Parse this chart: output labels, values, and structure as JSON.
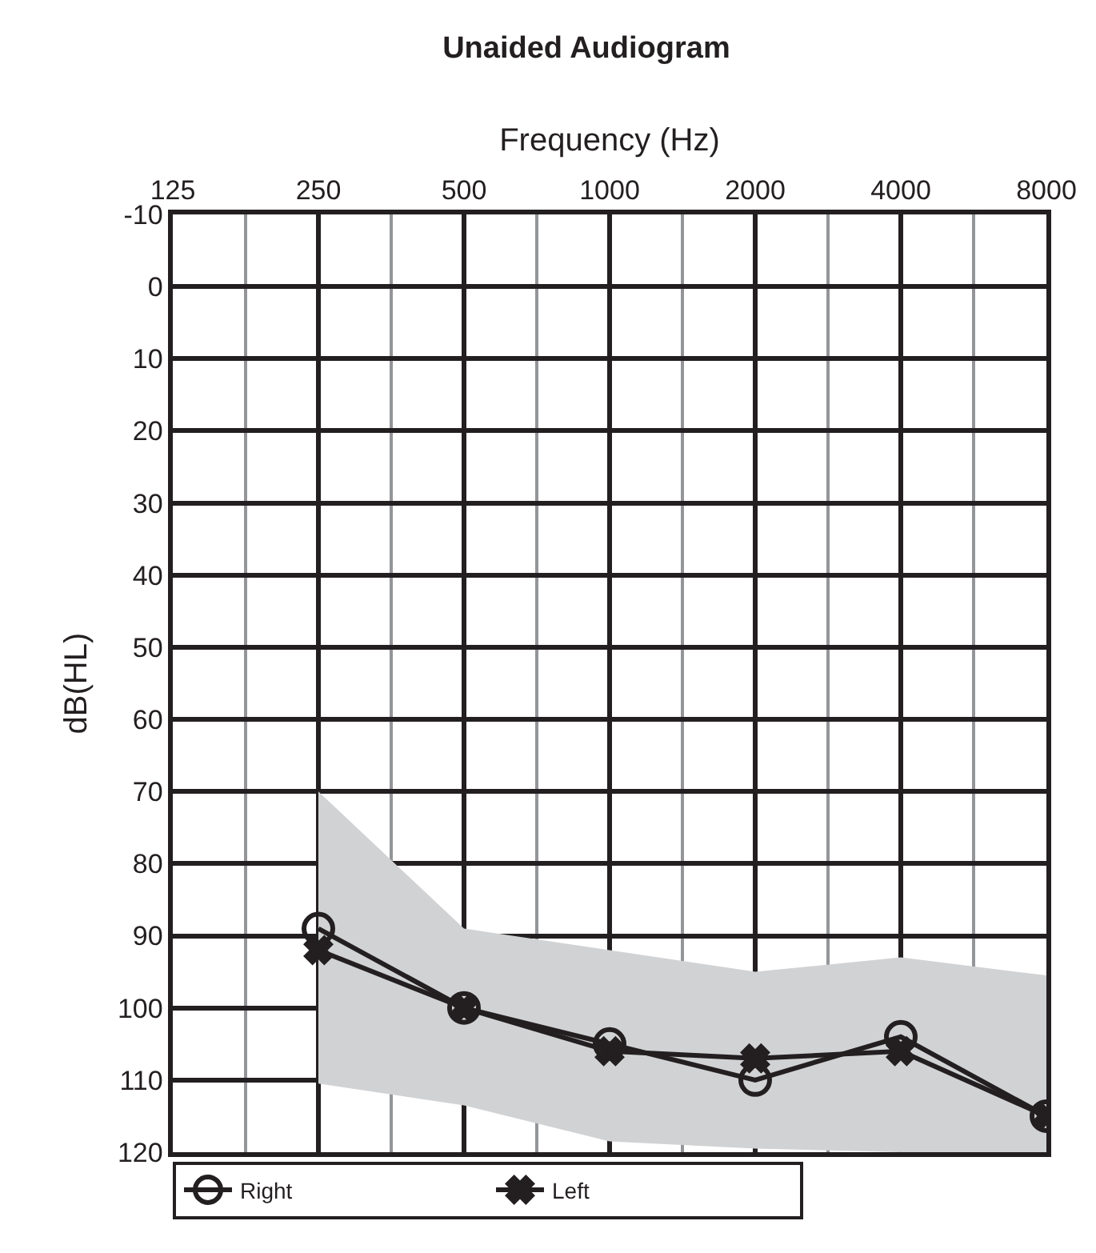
{
  "chart_data": {
    "type": "line",
    "title": "Unaided Audiogram",
    "xlabel": "Frequency (Hz)",
    "ylabel": "dB(HL)",
    "categories": [
      "125",
      "250",
      "500",
      "1000",
      "2000",
      "4000",
      "8000"
    ],
    "ylim": [
      120,
      -10
    ],
    "yticks": [
      -10,
      0,
      10,
      20,
      30,
      40,
      50,
      60,
      70,
      80,
      90,
      100,
      110,
      120
    ],
    "grid": true,
    "legend": "bottom left",
    "line_style": "solid",
    "series": [
      {
        "type": "line",
        "color": "#d1d2d4",
        "values": [
          null,
          null,
          null,
          null,
          null,
          null,
          null
        ],
        "upper": [
          null,
          70,
          89,
          92,
          95,
          93,
          95.5
        ],
        "lower": [
          null,
          110.5,
          113.5,
          118.5,
          119.5,
          120,
          120
        ]
      },
      {
        "name": "Right",
        "color": "#231f20",
        "marker": "circle",
        "values": [
          null,
          89,
          100,
          105,
          110,
          104,
          115
        ]
      },
      {
        "name": "Left",
        "color": "#231f20",
        "marker": "cross",
        "values": [
          null,
          92,
          100,
          106,
          107,
          106,
          115
        ]
      }
    ]
  }
}
